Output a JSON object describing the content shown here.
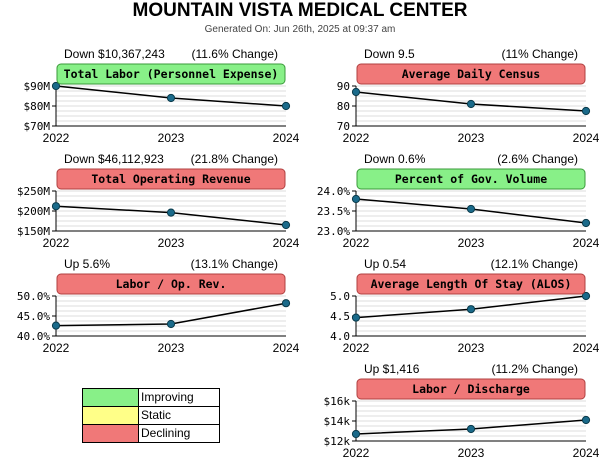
{
  "header": {
    "title": "MOUNTAIN VISTA MEDICAL CENTER",
    "subtitle": "Generated On: Jun 26th, 2025 at 09:37 am"
  },
  "legend": [
    {
      "label": "Improving",
      "color": "#88f088"
    },
    {
      "label": "Static",
      "color": "#ffff88"
    },
    {
      "label": "Declining",
      "color": "#f07878"
    }
  ],
  "chart_data": [
    {
      "type": "line",
      "title": "Total Labor (Personnel Expense)",
      "status": "improving",
      "change_left": "Down $10,367,243",
      "change_right": "(11.6% Change)",
      "categories": [
        "2022",
        "2023",
        "2024"
      ],
      "values": [
        90,
        84,
        80
      ],
      "unit": "millions USD",
      "ylim": [
        70,
        90
      ],
      "yticks": [
        70,
        80,
        90
      ],
      "ytick_labels": [
        "$70M",
        "$80M",
        "$90M"
      ]
    },
    {
      "type": "line",
      "title": "Average Daily Census",
      "status": "declining",
      "change_left": "Down 9.5",
      "change_right": "(11% Change)",
      "categories": [
        "2022",
        "2023",
        "2024"
      ],
      "values": [
        87,
        81,
        77.5
      ],
      "ylim": [
        70,
        90
      ],
      "yticks": [
        70,
        80,
        90
      ],
      "ytick_labels": [
        "70",
        "80",
        "90"
      ]
    },
    {
      "type": "line",
      "title": "Total Operating Revenue",
      "status": "declining",
      "change_left": "Down $46,112,923",
      "change_right": "(21.8% Change)",
      "categories": [
        "2022",
        "2023",
        "2024"
      ],
      "values": [
        212,
        196,
        165
      ],
      "unit": "millions USD",
      "ylim": [
        150,
        250
      ],
      "yticks": [
        150,
        200,
        250
      ],
      "ytick_labels": [
        "$150M",
        "$200M",
        "$250M"
      ]
    },
    {
      "type": "line",
      "title": "Percent of Gov. Volume",
      "status": "improving",
      "change_left": "Down 0.6%",
      "change_right": "(2.6% Change)",
      "categories": [
        "2022",
        "2023",
        "2024"
      ],
      "values": [
        23.8,
        23.55,
        23.2
      ],
      "ylim": [
        23.0,
        24.0
      ],
      "yticks": [
        23.0,
        23.5,
        24.0
      ],
      "ytick_labels": [
        "23.0%",
        "23.5%",
        "24.0%"
      ]
    },
    {
      "type": "line",
      "title": "Labor / Op. Rev.",
      "status": "declining",
      "change_left": "Up 5.6%",
      "change_right": "(13.1% Change)",
      "categories": [
        "2022",
        "2023",
        "2024"
      ],
      "values": [
        42.6,
        43.0,
        48.2
      ],
      "ylim": [
        40,
        50
      ],
      "yticks": [
        40,
        45,
        50
      ],
      "ytick_labels": [
        "40.0%",
        "45.0%",
        "50.0%"
      ]
    },
    {
      "type": "line",
      "title": "Average Length Of Stay (ALOS)",
      "status": "declining",
      "change_left": "Up 0.54",
      "change_right": "(12.1% Change)",
      "categories": [
        "2022",
        "2023",
        "2024"
      ],
      "values": [
        4.46,
        4.67,
        5.0
      ],
      "ylim": [
        4.0,
        5.0
      ],
      "yticks": [
        4.0,
        4.5,
        5.0
      ],
      "ytick_labels": [
        "4.0",
        "4.5",
        "5.0"
      ]
    },
    {
      "type": "line",
      "title": "Labor / Discharge",
      "status": "declining",
      "change_left": "Up $1,416",
      "change_right": "(11.2% Change)",
      "categories": [
        "2022",
        "2023",
        "2024"
      ],
      "values": [
        12700,
        13200,
        14100
      ],
      "unit": "USD",
      "ylim": [
        12000,
        16000
      ],
      "yticks": [
        12000,
        14000,
        16000
      ],
      "ytick_labels": [
        "$12k",
        "$14k",
        "$16k"
      ]
    }
  ]
}
